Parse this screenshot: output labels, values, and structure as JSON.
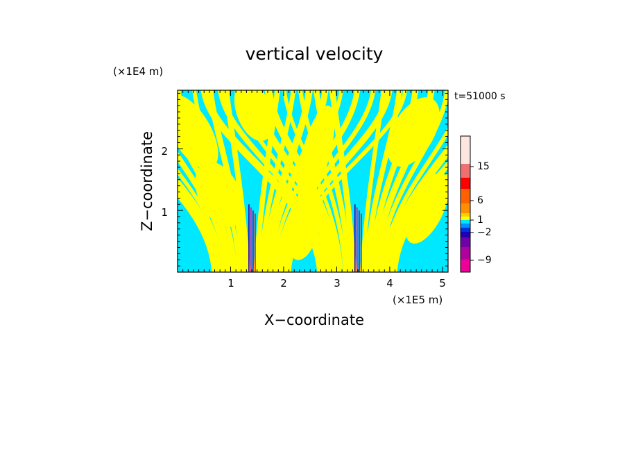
{
  "chart_data": {
    "type": "heatmap",
    "title": "vertical velocity",
    "xlabel": "X−coordinate",
    "ylabel": "Z−coordinate",
    "x_unit": "(×1E5 m)",
    "y_unit": "(×1E4 m)",
    "time_label": "t=51000 s",
    "xlim": [
      0,
      5.1
    ],
    "ylim": [
      0,
      2.95
    ],
    "x_ticks": [
      "1",
      "2",
      "3",
      "4",
      "5"
    ],
    "y_ticks": [
      "1",
      "2"
    ],
    "x_tick_values": [
      1,
      2,
      3,
      4,
      5
    ],
    "y_tick_values": [
      1,
      2
    ],
    "colorbar": {
      "tick_labels": [
        "15",
        "6",
        "1",
        "−2",
        "−9"
      ],
      "tick_values": [
        15,
        6,
        1,
        -2,
        -9
      ],
      "levels": [
        {
          "color": "#ee0099"
        },
        {
          "color": "#b000a0"
        },
        {
          "color": "#7000a8"
        },
        {
          "color": "#2000b0"
        },
        {
          "color": "#0030e0"
        },
        {
          "color": "#0090ff"
        },
        {
          "color": "#00e8ff"
        },
        {
          "color": "#ffff00"
        },
        {
          "color": "#ffd000"
        },
        {
          "color": "#ff9000"
        },
        {
          "color": "#ff6000"
        },
        {
          "color": "#ff0000"
        },
        {
          "color": "#f07070"
        },
        {
          "color": "#f8b0b0"
        },
        {
          "color": "#fde6e0"
        }
      ]
    },
    "dominant_colors": {
      "positive_small": "#ffff00",
      "negative_small": "#00e8ff"
    },
    "jets_x": [
      1.4,
      3.4
    ]
  }
}
